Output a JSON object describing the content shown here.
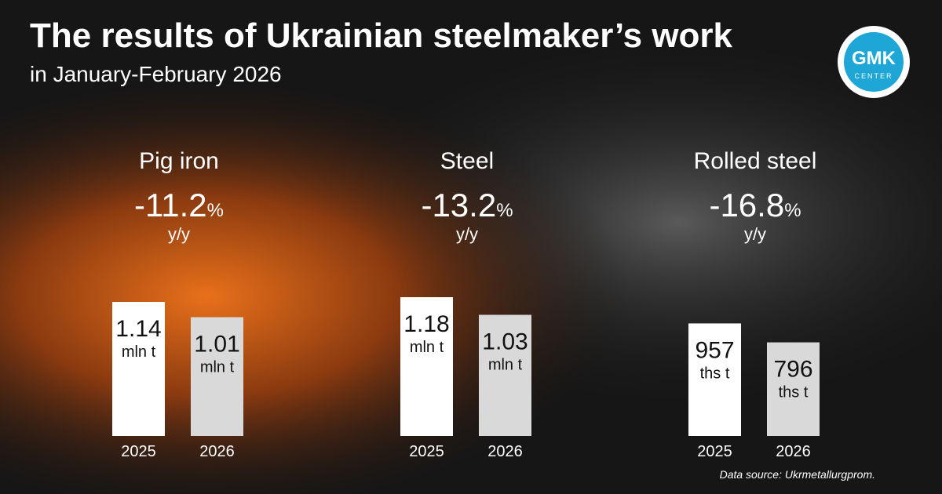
{
  "title": "The results of Ukrainian steelmaker’s work",
  "subtitle": "in January-February 2026",
  "logo": {
    "main": "GMK",
    "sub": "CENTER"
  },
  "source": "Data source: Ukrmetallurgprom.",
  "chart_data": [
    {
      "type": "bar",
      "title": "Pig iron",
      "change": "-11.2",
      "change_unit": "%",
      "change_basis": "y/y",
      "unit": "mln t",
      "categories": [
        "2025",
        "2026"
      ],
      "values": [
        1.14,
        1.01
      ],
      "colors": [
        "#ffffff",
        "#d9d9d9"
      ],
      "ylim": [
        0,
        1.2
      ]
    },
    {
      "type": "bar",
      "title": "Steel",
      "change": "-13.2",
      "change_unit": "%",
      "change_basis": "y/y",
      "unit": "mln t",
      "categories": [
        "2025",
        "2026"
      ],
      "values": [
        1.18,
        1.03
      ],
      "colors": [
        "#ffffff",
        "#d9d9d9"
      ],
      "ylim": [
        0,
        1.2
      ]
    },
    {
      "type": "bar",
      "title": "Rolled steel",
      "change": "-16.8",
      "change_unit": "%",
      "change_basis": "y/y",
      "unit": "ths t",
      "categories": [
        "2025",
        "2026"
      ],
      "values": [
        957,
        796
      ],
      "colors": [
        "#ffffff",
        "#d9d9d9"
      ],
      "ylim": [
        0,
        1200
      ]
    }
  ]
}
